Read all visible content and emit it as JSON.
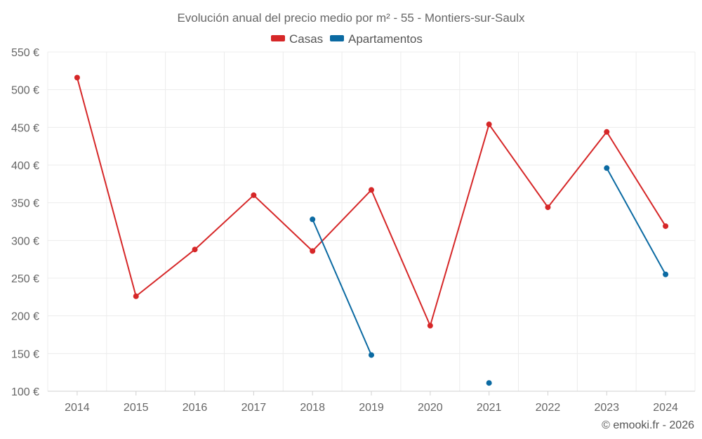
{
  "chart_data": {
    "type": "line",
    "title": "Evolución anual del precio medio por m² - 55 - Montiers-sur-Saulx",
    "xlabel": "",
    "ylabel": "",
    "categories": [
      "2014",
      "2015",
      "2016",
      "2017",
      "2018",
      "2019",
      "2020",
      "2021",
      "2022",
      "2023",
      "2024"
    ],
    "ylim": [
      100,
      550
    ],
    "yticks": [
      100,
      150,
      200,
      250,
      300,
      350,
      400,
      450,
      500,
      550
    ],
    "ytick_labels": [
      "100 €",
      "150 €",
      "200 €",
      "250 €",
      "300 €",
      "350 €",
      "400 €",
      "450 €",
      "500 €",
      "550 €"
    ],
    "grid": true,
    "legend_position": "top-center",
    "series": [
      {
        "name": "Casas",
        "color": "#d62728",
        "values": [
          516,
          226,
          288,
          360,
          286,
          367,
          187,
          454,
          344,
          444,
          319
        ]
      },
      {
        "name": "Apartamentos",
        "color": "#0b6aa2",
        "values": [
          null,
          null,
          null,
          null,
          328,
          148,
          null,
          111,
          null,
          396,
          255
        ]
      }
    ]
  },
  "credit": "© emooki.fr - 2026"
}
